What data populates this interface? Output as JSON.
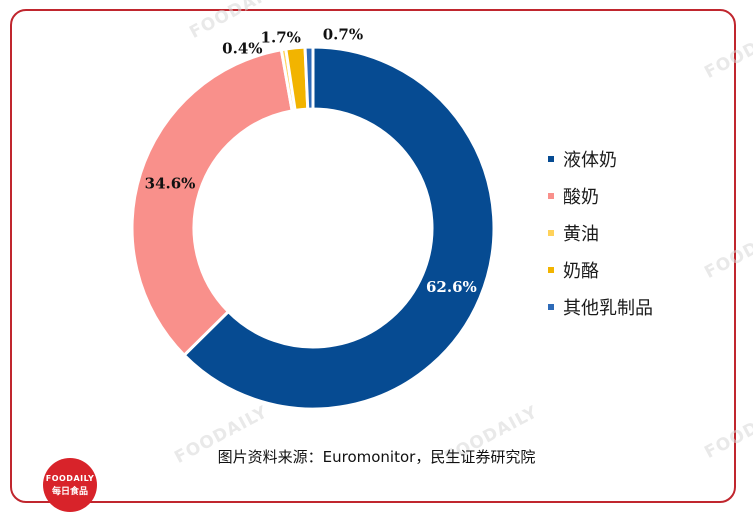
{
  "chart_data": {
    "type": "pie",
    "donut": true,
    "categories": [
      "液体奶",
      "酸奶",
      "黄油",
      "奶酪",
      "其他乳制品"
    ],
    "values": [
      62.6,
      34.6,
      0.4,
      1.7,
      0.7
    ],
    "labels": [
      "62.6%",
      "34.6%",
      "0.4%",
      "1.7%",
      "0.7%"
    ],
    "colors": [
      "#064b92",
      "#f9908b",
      "#ffd25a",
      "#f2b400",
      "#2e6bb8"
    ],
    "legend_position": "right"
  },
  "source_text": "图片资料来源：Euromonitor，民生证券研究院",
  "watermark": "FOODAILY",
  "logo": {
    "line1": "FOODAILY",
    "line2": "每日食品"
  }
}
